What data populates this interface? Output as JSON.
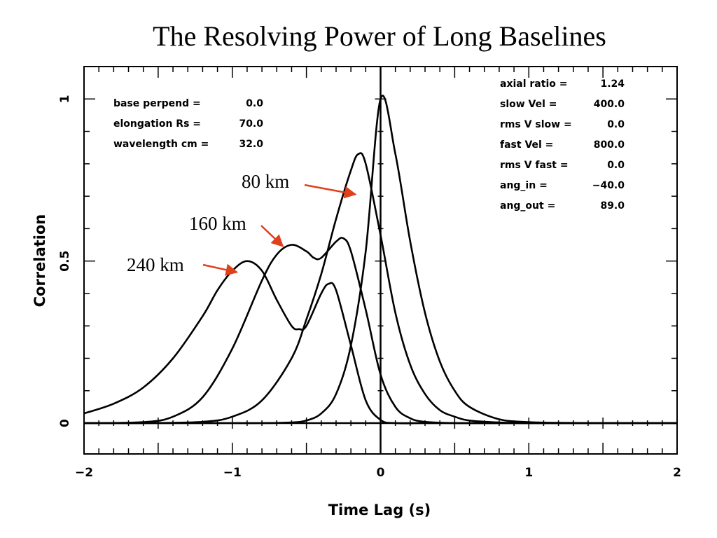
{
  "chart_data": {
    "type": "line",
    "title": "The Resolving Power of Long Baselines",
    "xlabel": "Time Lag (s)",
    "ylabel": "Correlation",
    "xlim": [
      -2,
      2
    ],
    "ylim": [
      -0.095,
      1.1
    ],
    "x_ticks": [
      "−2",
      "−1",
      "0",
      "1",
      "2"
    ],
    "y_ticks": [
      "0",
      "0.5",
      "1"
    ],
    "parameters_left": [
      {
        "label": "base perpend =",
        "value": "0.0"
      },
      {
        "label": "elongation Rs =",
        "value": "70.0"
      },
      {
        "label": "wavelength cm =",
        "value": "32.0"
      }
    ],
    "parameters_right": [
      {
        "label": "axial ratio =",
        "value": "1.24"
      },
      {
        "label": "slow Vel  =",
        "value": "400.0"
      },
      {
        "label": "rms V slow =",
        "value": "0.0"
      },
      {
        "label": "fast Vel =",
        "value": "800.0"
      },
      {
        "label": "rms V fast =",
        "value": "0.0"
      },
      {
        "label": "ang_in =",
        "value": "−40.0"
      },
      {
        "label": "ang_out =",
        "value": "89.0"
      }
    ],
    "annotations": [
      {
        "text": "80 km",
        "x_data": -0.15,
        "y_data": 0.71
      },
      {
        "text": "160 km",
        "x_data": -0.64,
        "y_data": 0.55
      },
      {
        "text": "240 km",
        "x_data": -0.95,
        "y_data": 0.47
      }
    ],
    "arrow_color": "#e0401a",
    "series": [
      {
        "x": [
          -2.0,
          -1.8,
          -1.6,
          -1.4,
          -1.2,
          -1.0,
          -0.8,
          -0.6,
          -0.5,
          -0.4,
          -0.3,
          -0.2,
          -0.1,
          0.0,
          0.1,
          0.2,
          0.3,
          0.4,
          0.5,
          0.6,
          0.8,
          1.0,
          1.2,
          1.5,
          2.0
        ],
        "y": [
          0.0,
          0.0,
          0.0,
          0.0,
          0.0,
          0.0,
          0.0,
          0.002,
          0.008,
          0.03,
          0.09,
          0.24,
          0.53,
          1.0,
          0.83,
          0.56,
          0.34,
          0.19,
          0.1,
          0.05,
          0.012,
          0.003,
          0.001,
          0.0,
          0.0
        ]
      },
      {
        "x": [
          -2.0,
          -1.6,
          -1.2,
          -1.0,
          -0.8,
          -0.6,
          -0.5,
          -0.4,
          -0.3,
          -0.2,
          -0.15,
          -0.1,
          0.0,
          0.1,
          0.2,
          0.3,
          0.4,
          0.5,
          0.6,
          0.8,
          1.0,
          1.5,
          2.0
        ],
        "y": [
          0.0,
          0.0,
          0.004,
          0.02,
          0.07,
          0.2,
          0.32,
          0.46,
          0.63,
          0.78,
          0.83,
          0.8,
          0.58,
          0.34,
          0.18,
          0.09,
          0.04,
          0.02,
          0.008,
          0.002,
          0.0,
          0.0,
          0.0
        ]
      },
      {
        "x": [
          -2.0,
          -1.6,
          -1.4,
          -1.2,
          -1.0,
          -0.8,
          -0.7,
          -0.6,
          -0.5,
          -0.45,
          -0.4,
          -0.3,
          -0.25,
          -0.2,
          -0.1,
          0.0,
          0.1,
          0.2,
          0.3,
          0.5,
          0.8,
          1.2,
          2.0
        ],
        "y": [
          0.0,
          0.003,
          0.02,
          0.08,
          0.23,
          0.44,
          0.52,
          0.55,
          0.53,
          0.51,
          0.51,
          0.56,
          0.57,
          0.53,
          0.35,
          0.15,
          0.05,
          0.015,
          0.004,
          0.0,
          0.0,
          0.0,
          0.0
        ]
      },
      {
        "x": [
          -2.0,
          -1.8,
          -1.6,
          -1.4,
          -1.2,
          -1.1,
          -1.0,
          -0.9,
          -0.8,
          -0.7,
          -0.6,
          -0.55,
          -0.5,
          -0.4,
          -0.35,
          -0.3,
          -0.2,
          -0.1,
          0.0,
          0.1,
          0.3,
          0.6,
          1.0,
          2.0
        ],
        "y": [
          0.03,
          0.06,
          0.11,
          0.2,
          0.33,
          0.41,
          0.47,
          0.5,
          0.47,
          0.38,
          0.3,
          0.29,
          0.3,
          0.4,
          0.43,
          0.41,
          0.24,
          0.07,
          0.01,
          0.0,
          0.0,
          0.0,
          0.0,
          0.0
        ]
      }
    ]
  }
}
